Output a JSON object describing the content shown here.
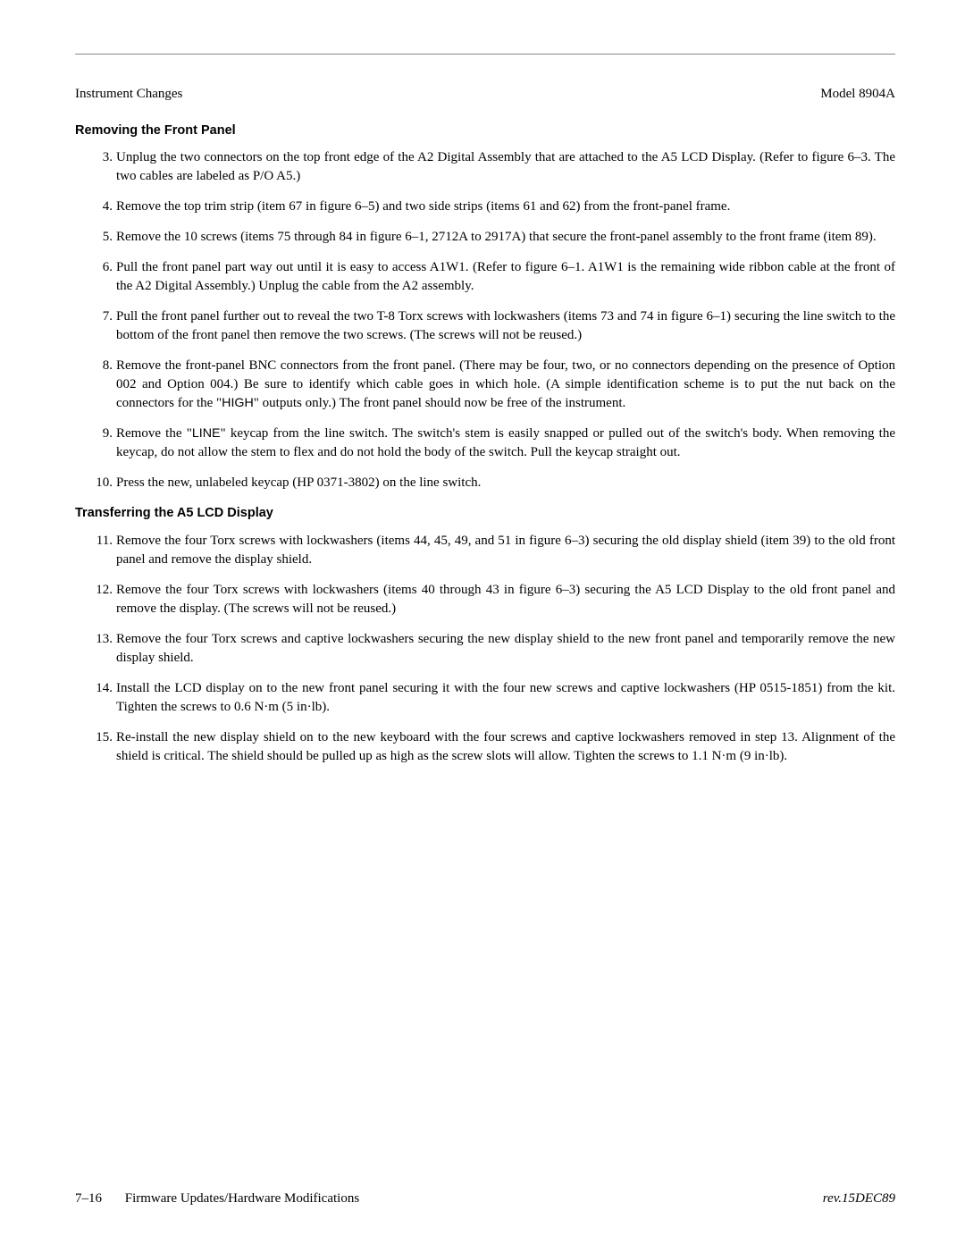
{
  "header": {
    "left": "Instrument Changes",
    "right": "Model 8904A"
  },
  "section1": {
    "title": "Removing the Front Panel",
    "steps": [
      {
        "n": "3.",
        "text": "Unplug the two connectors on the top front edge of the A2 Digital Assembly that are attached to the A5 LCD Display. (Refer to figure 6–3. The two cables are labeled as P/O A5.)"
      },
      {
        "n": "4.",
        "text": "Remove the top trim strip (item 67 in figure 6–5) and two side strips (items 61 and 62) from the front-panel frame."
      },
      {
        "n": "5.",
        "text": "Remove the 10 screws (items 75 through 84 in figure 6–1, 2712A to 2917A) that secure the front-panel assembly to the front frame (item 89)."
      },
      {
        "n": "6.",
        "text": "Pull the front panel part way out until it is easy to access A1W1. (Refer to figure 6–1. A1W1 is the remaining wide ribbon cable at the front of the A2 Digital Assembly.) Unplug the cable from the A2 assembly."
      },
      {
        "n": "7.",
        "text": "Pull the front panel further out to reveal the two T-8 Torx screws with lockwashers (items 73 and 74 in figure 6–1) securing the line switch to the bottom of the front panel then remove the two screws. (The screws will not be reused.)"
      },
      {
        "n": "8.",
        "text_parts": [
          "Remove the front-panel BNC connectors from the front panel. (There may be four, two, or no connectors depending on the presence of Option 002 and Option 004.) Be sure to identify which cable goes in which hole. (A simple identification scheme is to put the nut back on the connectors for the \"",
          "HIGH",
          "\" outputs only.) The front panel should now be free of the instrument."
        ]
      },
      {
        "n": "9.",
        "text_parts": [
          "Remove the \"",
          "LINE",
          "\" keycap from the line switch. The switch's stem is easily snapped or pulled out of the switch's body. When removing the keycap, do not allow the stem to flex and do not hold the body of the switch. Pull the keycap straight out."
        ]
      },
      {
        "n": "10.",
        "text": "Press the new, unlabeled keycap (HP 0371-3802) on the line switch."
      }
    ]
  },
  "section2": {
    "title": "Transferring the A5 LCD Display",
    "steps": [
      {
        "n": "11.",
        "text": "Remove the four Torx screws with lockwashers (items 44, 45, 49, and 51 in figure 6–3) securing the old display shield (item 39) to the old front panel and remove the display shield."
      },
      {
        "n": "12.",
        "text": "Remove the four Torx screws with lockwashers (items 40 through 43 in figure 6–3) securing the A5 LCD Display to the old front panel and remove the display. (The screws will not be reused.)"
      },
      {
        "n": "13.",
        "text": "Remove the four Torx screws and captive lockwashers securing the new display shield to the new front panel and temporarily remove the new display shield."
      },
      {
        "n": "14.",
        "text": "Install the LCD display on to the new front panel securing it with the four new screws and captive lockwashers (HP 0515-1851) from the kit. Tighten the screws to 0.6 N·m (5 in·lb)."
      },
      {
        "n": "15.",
        "text": "Re-install the new display shield on to the new keyboard with the four screws and captive lockwashers removed in step 13. Alignment of the shield is critical. The shield should be pulled up as high as the screw slots will allow. Tighten the screws to 1.1 N·m (9 in·lb)."
      }
    ]
  },
  "footer": {
    "pagenum": "7–16",
    "title": "Firmware Updates/Hardware Modifications",
    "rev": "rev.15DEC89"
  }
}
